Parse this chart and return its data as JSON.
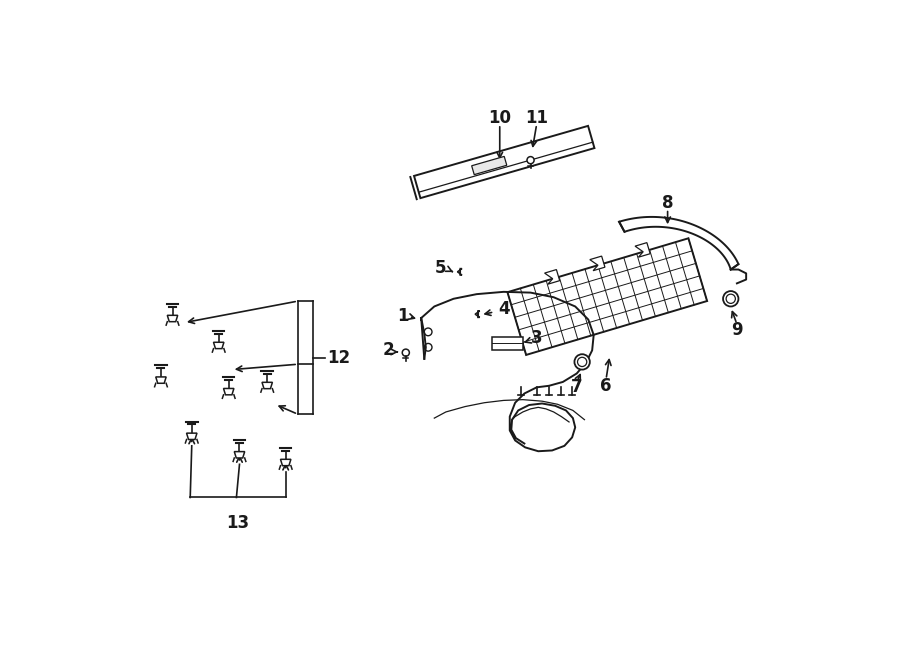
{
  "bg_color": "#ffffff",
  "line_color": "#1a1a1a",
  "figsize": [
    9.0,
    6.61
  ],
  "dpi": 100,
  "label_fontsize": 12,
  "small_fontsize": 10
}
